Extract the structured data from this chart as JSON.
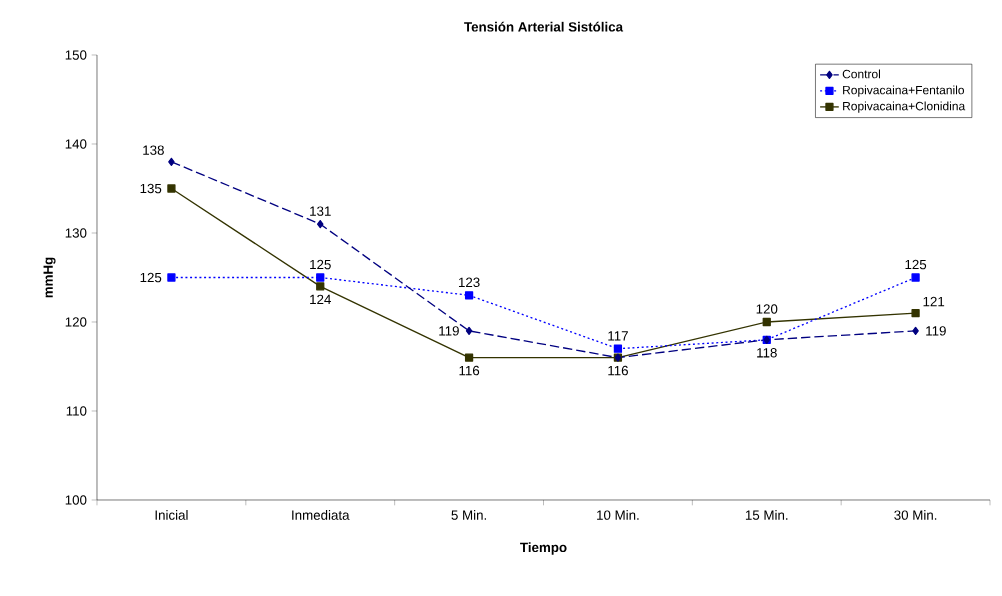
{
  "chart_data": {
    "type": "line",
    "title": "Tensión Arterial Sistólica",
    "xlabel": "Tiempo",
    "ylabel": "mmHg",
    "categories": [
      "Inicial",
      "Inmediata",
      "5 Min.",
      "10 Min.",
      "15 Min.",
      "30 Min."
    ],
    "series": [
      {
        "name": "Control",
        "color": "#000080",
        "marker": "diamond",
        "line_style": "dashed",
        "values": [
          138,
          131,
          119,
          116,
          118,
          119
        ],
        "value_labels": [
          "138",
          "131",
          "119",
          null,
          "118",
          "119"
        ]
      },
      {
        "name": "Ropivacaina+Fentanilo",
        "color": "#0000ff",
        "marker": "square",
        "line_style": "dotted",
        "values": [
          125,
          125,
          123,
          117,
          118,
          125
        ],
        "value_labels": [
          "125",
          "125",
          "123",
          "117",
          null,
          "125"
        ]
      },
      {
        "name": "Ropivacaina+Clonidina",
        "color": "#333300",
        "marker": "square",
        "line_style": "solid",
        "values": [
          135,
          124,
          116,
          116,
          120,
          121
        ],
        "value_labels": [
          "135",
          "124",
          "116",
          "116",
          "120",
          "121"
        ]
      }
    ],
    "ylim": [
      100,
      150
    ],
    "yticks": [
      100,
      110,
      120,
      130,
      140,
      150
    ],
    "grid": false,
    "legend": "top right"
  }
}
